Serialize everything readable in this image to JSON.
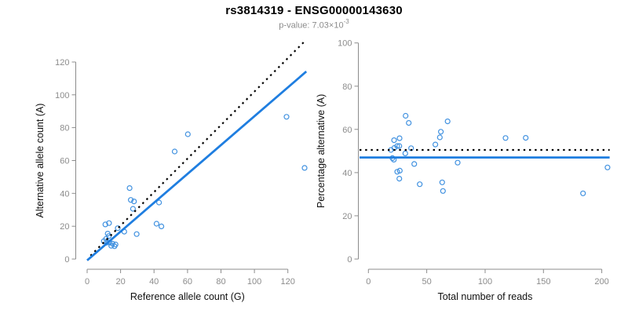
{
  "header": {
    "title": "rs3814319 - ENSG00000143630",
    "subtitle_prefix": "p-value: 7.03×10",
    "subtitle_exponent": "-3"
  },
  "colors": {
    "line_blue": "#1f7ee0",
    "point_blue": "#4292e0",
    "dotted_black": "#000000",
    "axis_gray": "#8c8c8c",
    "label_black": "#111111"
  },
  "chart_data": [
    {
      "id": "allele-count-scatter",
      "type": "scatter",
      "title": "",
      "xlabel": "Reference allele count (G)",
      "ylabel": "Alternative allele count (A)",
      "xlim": [
        0,
        120
      ],
      "ylim": [
        0,
        120
      ],
      "xticks": [
        0,
        20,
        40,
        60,
        80,
        100,
        120
      ],
      "yticks": [
        0,
        20,
        40,
        60,
        80,
        100,
        120
      ],
      "points": [
        [
          10.0,
          10.9
        ],
        [
          11.3,
          12.3
        ],
        [
          11.7,
          10.0
        ],
        [
          13.5,
          10.0
        ],
        [
          15.2,
          9.4
        ],
        [
          17.0,
          8.9
        ],
        [
          16.4,
          7.8
        ],
        [
          14.4,
          8.1
        ],
        [
          10.9,
          21.1
        ],
        [
          13.1,
          21.9
        ],
        [
          12.3,
          15.5
        ],
        [
          13.0,
          14.0
        ],
        [
          18.3,
          18.8
        ],
        [
          22.2,
          16.7
        ],
        [
          25.4,
          43.2
        ],
        [
          26.1,
          36.0
        ],
        [
          28.0,
          35.1
        ],
        [
          27.4,
          30.6
        ],
        [
          29.6,
          15.2
        ],
        [
          41.5,
          21.5
        ],
        [
          44.4,
          19.9
        ],
        [
          43.0,
          34.4
        ],
        [
          52.3,
          65.5
        ],
        [
          60.2,
          76.0
        ],
        [
          119.2,
          86.6
        ],
        [
          130.0,
          55.5
        ]
      ],
      "lines": [
        {
          "id": "identity-line",
          "type": "ab",
          "slope": 1.02,
          "intercept": 0,
          "x_range": [
            2,
            130.3
          ],
          "color": "#000000",
          "dash": "dotted",
          "width": 2.2
        },
        {
          "id": "regression-line",
          "type": "ab",
          "slope": 0.878,
          "intercept": -0.8,
          "x_range": [
            0,
            131
          ],
          "color": "#1f7ee0",
          "dash": "solid",
          "width": 2.8
        }
      ]
    },
    {
      "id": "percentage-reads-scatter",
      "type": "scatter",
      "title": "",
      "xlabel": "Total number of reads",
      "ylabel": "Percentage alternative (A)",
      "xlim": [
        0,
        200
      ],
      "ylim": [
        0,
        100
      ],
      "xticks": [
        0,
        50,
        100,
        150,
        200
      ],
      "yticks": [
        0,
        20,
        40,
        60,
        80,
        100
      ],
      "points": [
        [
          19.3,
          50.5
        ],
        [
          20.6,
          46.7
        ],
        [
          21.8,
          46.0
        ],
        [
          22.0,
          55.0
        ],
        [
          22.2,
          51.4
        ],
        [
          24.7,
          52.3
        ],
        [
          26.5,
          52.3
        ],
        [
          26.7,
          55.9
        ],
        [
          24.7,
          40.4
        ],
        [
          26.9,
          40.9
        ],
        [
          26.5,
          37.2
        ],
        [
          31.6,
          48.9
        ],
        [
          31.9,
          66.3
        ],
        [
          34.6,
          63.0
        ],
        [
          36.6,
          51.3
        ],
        [
          39.3,
          44.0
        ],
        [
          44.0,
          34.6
        ],
        [
          57.4,
          53.0
        ],
        [
          61.2,
          56.3
        ],
        [
          62.1,
          58.9
        ],
        [
          63.2,
          35.5
        ],
        [
          63.9,
          31.5
        ],
        [
          67.9,
          63.7
        ],
        [
          76.5,
          44.6
        ],
        [
          117.5,
          56.0
        ],
        [
          134.8,
          56.1
        ],
        [
          183.9,
          30.4
        ],
        [
          204.9,
          42.4
        ]
      ],
      "lines": [
        {
          "id": "expected-percentage-line",
          "type": "h",
          "y": 50.5,
          "color": "#000000",
          "dash": "dotted",
          "width": 2.2
        },
        {
          "id": "observed-percentage-line",
          "type": "h",
          "y": 47.0,
          "color": "#1f7ee0",
          "dash": "solid",
          "width": 2.8
        }
      ]
    }
  ]
}
